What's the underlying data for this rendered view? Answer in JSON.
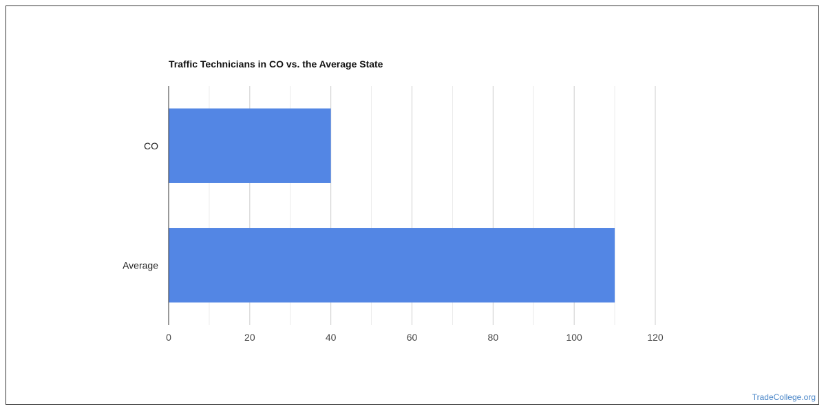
{
  "chart_data": {
    "type": "bar",
    "orientation": "horizontal",
    "title": "Traffic Technicians in CO vs. the Average State",
    "categories": [
      "CO",
      "Average"
    ],
    "values": [
      40,
      110
    ],
    "xlim": [
      0,
      120
    ],
    "xticks": [
      0,
      20,
      40,
      60,
      80,
      100,
      120
    ],
    "grid": true,
    "bar_color": "#5386e4",
    "xlabel": "",
    "ylabel": ""
  },
  "watermark": "TradeCollege.org"
}
